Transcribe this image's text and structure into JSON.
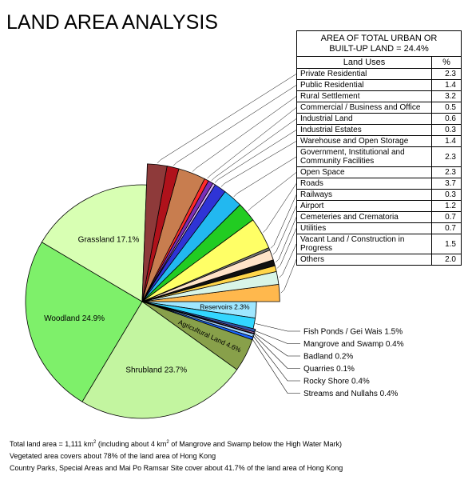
{
  "title": "LAND AREA ANALYSIS",
  "table": {
    "header_line1": "AREA OF TOTAL URBAN OR",
    "header_line2": "BUILT-UP LAND = 24.4%",
    "col_use": "Land Uses",
    "col_pct": "%"
  },
  "notes": {
    "line1_a": "Total land area = 1,111 km",
    "line1_sup1": "2",
    "line1_b": " (including about 4 km",
    "line1_sup2": "2",
    "line1_c": " of Mangrove and Swamp below the High Water Mark)",
    "line2": "Vegetated area covers about 78% of the land area of Hong Kong",
    "line3": "Country Parks, Special Areas and Mai Po Ramsar Site cover about 41.7% of the land area of Hong Kong"
  },
  "chart_data": {
    "type": "pie",
    "urban": [
      {
        "label": "Private Residential",
        "display": "2.3",
        "value": 2.3,
        "color": "#8e3a3a"
      },
      {
        "label": "Public Residential",
        "display": "1.4",
        "value": 1.4,
        "color": "#b0121b"
      },
      {
        "label": "Rural Settlement",
        "display": "3.2",
        "value": 3.2,
        "color": "#c87d4f"
      },
      {
        "label": "Commercial / Business and Office",
        "display": "0.5",
        "value": 0.5,
        "color": "#ff2a2a"
      },
      {
        "label": "Industrial Land",
        "display": "0.6",
        "value": 0.6,
        "color": "#7a2fb8"
      },
      {
        "label": "Industrial Estates",
        "display": "0.3",
        "value": 0.3,
        "color": "#d9b3ff"
      },
      {
        "label": "Warehouse and Open Storage",
        "display": "1.4",
        "value": 1.4,
        "color": "#2f34d6"
      },
      {
        "label": "Government, Institutional and Community Facilities",
        "display": "2.3",
        "value": 2.3,
        "color": "#22b8f0"
      },
      {
        "label": "Open Space",
        "display": "2.3",
        "value": 2.3,
        "color": "#22cc22"
      },
      {
        "label": "Roads",
        "display": "3.7",
        "value": 3.7,
        "color": "#ffff66"
      },
      {
        "label": "Railways",
        "display": "0.3",
        "value": 0.3,
        "color": "#777777"
      },
      {
        "label": "Airport",
        "display": "1.2",
        "value": 1.2,
        "color": "#ffe3c8"
      },
      {
        "label": "Cemeteries and Crematoria",
        "display": "0.7",
        "value": 0.7,
        "color": "#111111"
      },
      {
        "label": "Utilities",
        "display": "0.7",
        "value": 0.7,
        "color": "#ffd64a"
      },
      {
        "label": "Vacant Land / Construction in Progress",
        "display": "1.5",
        "value": 1.5,
        "color": "#d8f5e8"
      },
      {
        "label": "Others",
        "display": "2.0",
        "value": 2.0,
        "color": "#ffb84d"
      }
    ],
    "others": [
      {
        "label": "Reservoirs",
        "display": "Reservoirs  2.3%",
        "value": 2.3,
        "color": "#9fe7ff",
        "label_mode": "inside"
      },
      {
        "label": "Fish Ponds / Gei Wais",
        "display": "Fish Ponds / Gei Wais  1.5%",
        "value": 1.5,
        "color": "#33d6ff",
        "label_mode": "callout"
      },
      {
        "label": "Mangrove and Swamp",
        "display": "Mangrove and Swamp  0.4%",
        "value": 0.4,
        "color": "#3355aa",
        "label_mode": "callout"
      },
      {
        "label": "Badland",
        "display": "Badland  0.2%",
        "value": 0.2,
        "color": "#c77ac7",
        "label_mode": "callout"
      },
      {
        "label": "Quarries",
        "display": "Quarries  0.1%",
        "value": 0.1,
        "color": "#b05050",
        "label_mode": "callout"
      },
      {
        "label": "Rocky Shore",
        "display": "Rocky Shore  0.4%",
        "value": 0.4,
        "color": "#a6d6ff",
        "label_mode": "callout"
      },
      {
        "label": "Streams and Nullahs",
        "display": "Streams and Nullahs  0.4%",
        "value": 0.4,
        "color": "#1a66ff",
        "label_mode": "callout"
      },
      {
        "label": "Agricultural Land",
        "display": "Agricultural Land  4.6%",
        "value": 4.6,
        "color": "#88a04a",
        "label_mode": "inside"
      },
      {
        "label": "Shrubland",
        "display": "Shrubland  23.7%",
        "value": 23.7,
        "color": "#c3f5a0",
        "label_mode": "inside"
      },
      {
        "label": "Woodland",
        "display": "Woodland  24.9%",
        "value": 24.9,
        "color": "#7ef06a",
        "label_mode": "inside"
      },
      {
        "label": "Grassland",
        "display": "Grassland  17.1%",
        "value": 17.1,
        "color": "#d8ffb3",
        "label_mode": "inside"
      }
    ]
  }
}
